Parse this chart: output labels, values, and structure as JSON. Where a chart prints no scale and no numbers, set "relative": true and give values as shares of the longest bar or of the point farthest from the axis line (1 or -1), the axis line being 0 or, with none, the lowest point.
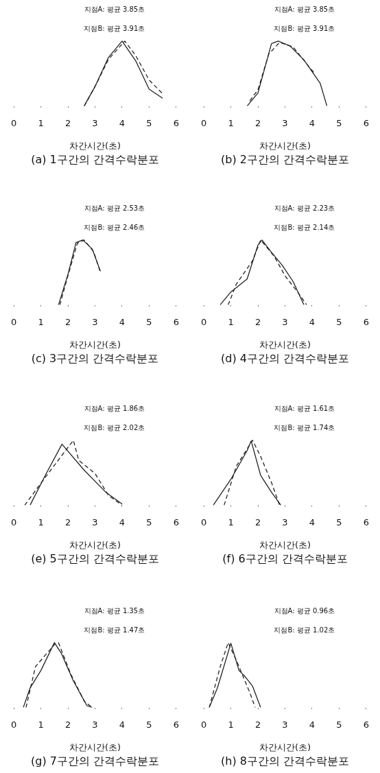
{
  "chart_data": [
    {
      "type": "line",
      "title": "(a) 1구간의 간격수락분포",
      "xlabel": "차간시간(초)",
      "annotations": [
        "지점A: 평균 3.85초",
        "지점B: 평균 3.91초"
      ],
      "xlim": [
        0,
        6
      ],
      "xticks": [
        0,
        1,
        2,
        3,
        4,
        5,
        6
      ],
      "relative": true,
      "marker": "none",
      "series": [
        {
          "color": "#222222",
          "line_style": "solid",
          "x": [
            2.6,
            3,
            3.5,
            4,
            4.5,
            5,
            5.5
          ],
          "values": [
            0,
            0.3,
            0.75,
            1,
            0.7,
            0.26,
            0.12
          ]
        },
        {
          "color": "#222222",
          "line_style": "dashed",
          "x": [
            2.6,
            3,
            3.5,
            4.1,
            4.5,
            5,
            5.5
          ],
          "values": [
            0,
            0.3,
            0.72,
            1,
            0.78,
            0.4,
            0.19
          ]
        }
      ]
    },
    {
      "type": "line",
      "title": "(b) 2구간의 간격수락분포",
      "xlabel": "차간시간(초)",
      "annotations": [
        "지점A: 평균 3.85초",
        "지점B: 평균 3.91초"
      ],
      "xlim": [
        0,
        6
      ],
      "xticks": [
        0,
        1,
        2,
        3,
        4,
        5,
        6
      ],
      "relative": true,
      "marker": "none",
      "series": [
        {
          "color": "#222222",
          "line_style": "solid",
          "x": [
            1.6,
            2,
            2.5,
            2.75,
            3.2,
            3.7,
            4,
            4.3,
            4.55
          ],
          "values": [
            0,
            0.2,
            0.96,
            1,
            0.92,
            0.71,
            0.53,
            0.35,
            0
          ]
        },
        {
          "color": "#222222",
          "line_style": "dashed",
          "x": [
            1.7,
            2,
            2.4,
            2.8,
            3.3,
            3.8,
            4.1
          ],
          "values": [
            0.08,
            0.25,
            0.8,
            0.98,
            0.91,
            0.65,
            0.5
          ]
        }
      ]
    },
    {
      "type": "line",
      "title": "(c) 3구간의 간격수락분포",
      "xlabel": "차간시간(초)",
      "annotations": [
        "지점A: 평균 2.53초",
        "지점B: 평균 2.46초"
      ],
      "xlim": [
        0,
        6
      ],
      "xticks": [
        0,
        1,
        2,
        3,
        4,
        5,
        6
      ],
      "relative": true,
      "marker": "none",
      "series": [
        {
          "color": "#222222",
          "line_style": "solid",
          "x": [
            1.65,
            2,
            2.3,
            2.55,
            2.9,
            3.2
          ],
          "values": [
            0,
            0.47,
            0.96,
            1,
            0.86,
            0.52
          ]
        },
        {
          "color": "#222222",
          "line_style": "dashed",
          "x": [
            1.7,
            2,
            2.35,
            2.6,
            2.95,
            3.2
          ],
          "values": [
            0,
            0.45,
            0.95,
            1,
            0.82,
            0.5
          ]
        }
      ]
    },
    {
      "type": "line",
      "title": "(d) 4구간의 간격수락분포",
      "xlabel": "차간시간(초)",
      "annotations": [
        "지점A: 평균 2.23초",
        "지점B: 평균 2.14초"
      ],
      "xlim": [
        0,
        6
      ],
      "xticks": [
        0,
        1,
        2,
        3,
        4,
        5,
        6
      ],
      "relative": true,
      "marker": "none",
      "series": [
        {
          "color": "#222222",
          "line_style": "solid",
          "x": [
            0.6,
            1,
            1.6,
            2,
            2.15,
            2.5,
            2.9,
            3.3,
            3.7
          ],
          "values": [
            0,
            0.2,
            0.4,
            0.92,
            1,
            0.81,
            0.61,
            0.36,
            0
          ]
        },
        {
          "color": "#222222",
          "line_style": "dashed",
          "x": [
            0.9,
            1.2,
            1.8,
            2.1,
            2.6,
            3,
            3.5,
            3.8
          ],
          "values": [
            0,
            0.32,
            0.68,
            1,
            0.75,
            0.45,
            0.18,
            0
          ]
        }
      ]
    },
    {
      "type": "line",
      "title": "(e) 5구간의 간격수락분포",
      "xlabel": "차간시간(초)",
      "annotations": [
        "지점A: 평균 1.86초",
        "지점B: 평균 2.02초"
      ],
      "xlim": [
        0,
        6
      ],
      "xticks": [
        0,
        1,
        2,
        3,
        4,
        5,
        6
      ],
      "relative": true,
      "marker": "none",
      "series": [
        {
          "color": "#222222",
          "line_style": "solid",
          "x": [
            0.6,
            1.2,
            1.78,
            2.6,
            3.4,
            4
          ],
          "values": [
            0,
            0.49,
            0.94,
            0.54,
            0.2,
            0.02
          ]
        },
        {
          "color": "#222222",
          "line_style": "dashed",
          "x": [
            0.4,
            1.2,
            2.2,
            2.4,
            3,
            3.5,
            4
          ],
          "values": [
            0,
            0.45,
            1,
            0.69,
            0.49,
            0.15,
            0
          ]
        }
      ]
    },
    {
      "type": "line",
      "title": "(f) 6구간의 간격수락분포",
      "xlabel": "차간시간(초)",
      "annotations": [
        "지점A: 평균 1.61초",
        "지점B: 평균 1.74초"
      ],
      "xlim": [
        0,
        6
      ],
      "xticks": [
        0,
        1,
        2,
        3,
        4,
        5,
        6
      ],
      "relative": true,
      "marker": "none",
      "series": [
        {
          "color": "#222222",
          "line_style": "solid",
          "x": [
            0.35,
            1,
            1.6,
            1.75,
            2.1,
            2.5,
            2.85
          ],
          "values": [
            0,
            0.4,
            0.84,
            0.99,
            0.46,
            0.2,
            0
          ]
        },
        {
          "color": "#222222",
          "line_style": "dashed",
          "x": [
            0.75,
            1.2,
            1.8,
            2.1,
            2.5,
            2.8
          ],
          "values": [
            0,
            0.6,
            1,
            0.75,
            0.35,
            0
          ]
        }
      ]
    },
    {
      "type": "line",
      "title": "(g) 7구간의 간격수락분포",
      "xlabel": "차간시간(초)",
      "annotations": [
        "지점A: 평균 1.35초",
        "지점B: 평균 1.47초"
      ],
      "xlim": [
        0,
        6
      ],
      "xticks": [
        0,
        1,
        2,
        3,
        4,
        5,
        6
      ],
      "relative": true,
      "marker": "none",
      "series": [
        {
          "color": "#222222",
          "line_style": "solid",
          "x": [
            0.35,
            0.6,
            1,
            1.5,
            1.75,
            2.2,
            2.7,
            2.9
          ],
          "values": [
            0,
            0.3,
            0.57,
            1,
            0.84,
            0.41,
            0.03,
            0
          ]
        },
        {
          "color": "#222222",
          "line_style": "dashed",
          "x": [
            0.45,
            0.8,
            1.5,
            1.65,
            2.1,
            2.6,
            2.9
          ],
          "values": [
            0,
            0.63,
            0.97,
            1,
            0.52,
            0.1,
            0
          ]
        }
      ]
    },
    {
      "type": "line",
      "title": "(h) 8구간의 간격수락분포",
      "xlabel": "차간시간(초)",
      "annotations": [
        "지점A: 평균 0.96초",
        "지점B: 평균 1.02초"
      ],
      "xlim": [
        0,
        6
      ],
      "xticks": [
        0,
        1,
        2,
        3,
        4,
        5,
        6
      ],
      "relative": true,
      "marker": "none",
      "series": [
        {
          "color": "#222222",
          "line_style": "solid",
          "x": [
            0.2,
            0.5,
            1,
            1.3,
            1.5,
            1.8,
            2.1
          ],
          "values": [
            0,
            0.3,
            0.99,
            0.57,
            0.49,
            0.33,
            0
          ]
        },
        {
          "color": "#222222",
          "line_style": "dashed",
          "x": [
            0.2,
            0.6,
            0.9,
            1.2,
            1.7,
            1.9
          ],
          "values": [
            0,
            0.62,
            1,
            0.73,
            0.23,
            0
          ]
        }
      ]
    }
  ]
}
